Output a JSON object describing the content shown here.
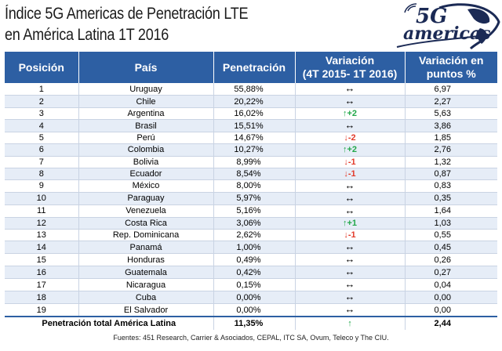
{
  "title": {
    "line1": "Índice 5G Americas de Penetración LTE",
    "line2": "en América Latina 1T 2016"
  },
  "logo": {
    "top": "5G",
    "bottom": "americas"
  },
  "header": {
    "position": "Posición",
    "country": "País",
    "penetration": "Penetración",
    "variation_l1": "Variación",
    "variation_l2": "(4T 2015- 1T 2016)",
    "points_l1": "Variación en",
    "points_l2": "puntos %"
  },
  "rows": [
    {
      "pos": "1",
      "country": "Uruguay",
      "pen": "55,88%",
      "dir": "same",
      "chg": "",
      "pts": "6,97"
    },
    {
      "pos": "2",
      "country": "Chile",
      "pen": "20,22%",
      "dir": "same",
      "chg": "",
      "pts": "2,27"
    },
    {
      "pos": "3",
      "country": "Argentina",
      "pen": "16,02%",
      "dir": "up",
      "chg": "+2",
      "pts": "5,63"
    },
    {
      "pos": "4",
      "country": "Brasil",
      "pen": "15,51%",
      "dir": "same",
      "chg": "",
      "pts": "3,86"
    },
    {
      "pos": "5",
      "country": "Perú",
      "pen": "14,67%",
      "dir": "down",
      "chg": "-2",
      "pts": "1,85"
    },
    {
      "pos": "6",
      "country": "Colombia",
      "pen": "10,27%",
      "dir": "up",
      "chg": "+2",
      "pts": "2,76"
    },
    {
      "pos": "7",
      "country": "Bolivia",
      "pen": "8,99%",
      "dir": "down",
      "chg": "-1",
      "pts": "1,32"
    },
    {
      "pos": "8",
      "country": "Ecuador",
      "pen": "8,54%",
      "dir": "down",
      "chg": "-1",
      "pts": "0,87"
    },
    {
      "pos": "9",
      "country": "México",
      "pen": "8,00%",
      "dir": "same",
      "chg": "",
      "pts": "0,83"
    },
    {
      "pos": "10",
      "country": "Paraguay",
      "pen": "5,97%",
      "dir": "same",
      "chg": "",
      "pts": "0,35"
    },
    {
      "pos": "11",
      "country": "Venezuela",
      "pen": "5,16%",
      "dir": "same",
      "chg": "",
      "pts": "1,64"
    },
    {
      "pos": "12",
      "country": "Costa Rica",
      "pen": "3,06%",
      "dir": "up",
      "chg": "+1",
      "pts": "1,03"
    },
    {
      "pos": "13",
      "country": "Rep. Dominicana",
      "pen": "2,62%",
      "dir": "down",
      "chg": "-1",
      "pts": "0,55"
    },
    {
      "pos": "14",
      "country": "Panamá",
      "pen": "1,00%",
      "dir": "same",
      "chg": "",
      "pts": "0,45"
    },
    {
      "pos": "15",
      "country": "Honduras",
      "pen": "0,49%",
      "dir": "same",
      "chg": "",
      "pts": "0,26"
    },
    {
      "pos": "16",
      "country": "Guatemala",
      "pen": "0,42%",
      "dir": "same",
      "chg": "",
      "pts": "0,27"
    },
    {
      "pos": "17",
      "country": "Nicaragua",
      "pen": "0,15%",
      "dir": "same",
      "chg": "",
      "pts": "0,04"
    },
    {
      "pos": "18",
      "country": "Cuba",
      "pen": "0,00%",
      "dir": "same",
      "chg": "",
      "pts": "0,00"
    },
    {
      "pos": "19",
      "country": "El Salvador",
      "pen": "0,00%",
      "dir": "same",
      "chg": "",
      "pts": "0,00"
    }
  ],
  "total": {
    "label": "Penetración total América Latina",
    "pen": "11,35%",
    "dir": "up",
    "pts": "2,44"
  },
  "source": "Fuentes: 451 Research,  Carrier & Asociados, CEPAL, ITC SA, Ovum, Teleco y The CIU.",
  "colors": {
    "header_bg": "#2d5fa3",
    "up": "#22a84a",
    "down": "#e23a2a",
    "stripe": "#e6edf7"
  },
  "icons": {
    "same": "left-right-arrow-icon",
    "up": "up-arrow-icon",
    "down": "down-arrow-icon"
  }
}
